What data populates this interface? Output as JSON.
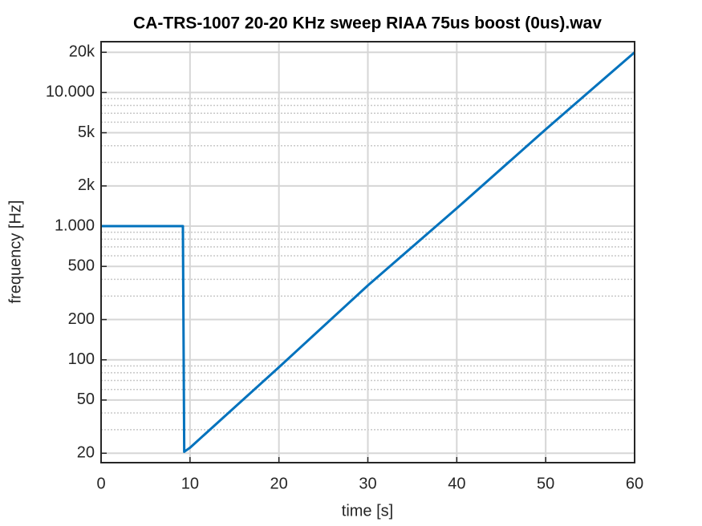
{
  "chart_data": {
    "type": "line",
    "title": "CA-TRS-1007 20-20 KHz sweep RIAA 75us boost (0us).wav",
    "x_label": "time [s]",
    "y_label": "frequency [Hz]",
    "x": [
      0,
      9.2,
      9.35,
      10,
      20,
      30,
      40,
      50,
      60
    ],
    "values": [
      1000,
      1000,
      20.5,
      22,
      88,
      360,
      1360,
      5300,
      20000
    ],
    "color": "#0072bd",
    "xlim": [
      0,
      60
    ],
    "xticks": [
      0,
      10,
      20,
      30,
      40,
      50,
      60
    ],
    "ylim": [
      17,
      24000
    ],
    "y_scale": "log",
    "yticks": [
      20,
      50,
      100,
      200,
      500,
      {
        "value": 1000,
        "label": "1.000"
      },
      {
        "value": 2000,
        "label": "2k"
      },
      {
        "value": 5000,
        "label": "5k"
      },
      {
        "value": 10000,
        "label": "10.000"
      },
      {
        "value": 20000,
        "label": "20k"
      }
    ],
    "grid": true,
    "minor_grid": true
  }
}
